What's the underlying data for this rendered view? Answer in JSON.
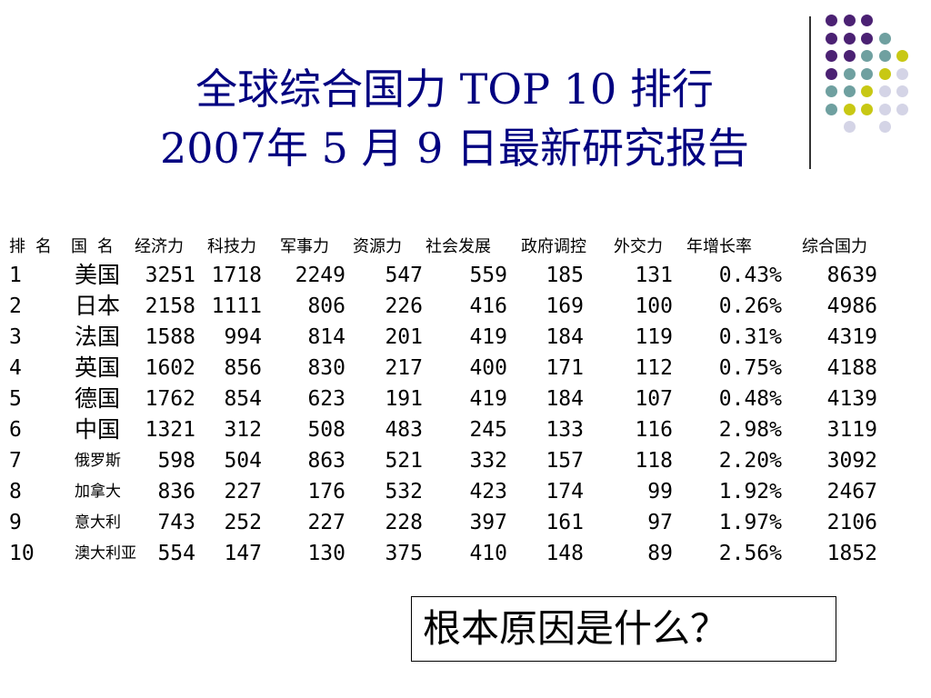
{
  "title": {
    "line1": "全球综合国力 TOP 10 排行",
    "line2": "2007年 5 月 9 日最新研究报告"
  },
  "decoration": {
    "colors": {
      "purple": "#4B2173",
      "teal": "#6FA0A0",
      "yellow": "#C8C814",
      "lavender": "#D4D4E6"
    }
  },
  "table": {
    "headers": [
      "排 名",
      "国 名",
      "经济力",
      "科技力",
      "军事力",
      "资源力",
      "社会发展",
      "政府调控",
      "外交力",
      "年增长率",
      "综合国力"
    ],
    "rows": [
      [
        "1",
        "美国",
        "3251",
        "1718",
        "2249",
        "547",
        "559",
        "185",
        "131",
        "0.43%",
        "8639"
      ],
      [
        "2",
        "日本",
        "2158",
        "1111",
        "806",
        "226",
        "416",
        "169",
        "100",
        "0.26%",
        "4986"
      ],
      [
        "3",
        "法国",
        "1588",
        "994",
        "814",
        "201",
        "419",
        "184",
        "119",
        "0.31%",
        "4319"
      ],
      [
        "4",
        "英国",
        "1602",
        "856",
        "830",
        "217",
        "400",
        "171",
        "112",
        "0.75%",
        "4188"
      ],
      [
        "5",
        "德国",
        "1762",
        "854",
        "623",
        "191",
        "419",
        "184",
        "107",
        "0.48%",
        "4139"
      ],
      [
        "6",
        "中国",
        "1321",
        "312",
        "508",
        "483",
        "245",
        "133",
        "116",
        "2.98%",
        "3119"
      ],
      [
        "7",
        "俄罗斯",
        "598",
        "504",
        "863",
        "521",
        "332",
        "157",
        "118",
        "2.20%",
        "3092"
      ],
      [
        "8",
        "加拿大",
        "836",
        "227",
        "176",
        "532",
        "423",
        "174",
        "99",
        "1.92%",
        "2467"
      ],
      [
        "9",
        "意大利",
        "743",
        "252",
        "227",
        "228",
        "397",
        "161",
        "97",
        "1.97%",
        "2106"
      ],
      [
        "10",
        "澳大利亚",
        "554",
        "147",
        "130",
        "375",
        "410",
        "148",
        "89",
        "2.56%",
        "1852"
      ]
    ]
  },
  "question": "根本原因是什么？"
}
